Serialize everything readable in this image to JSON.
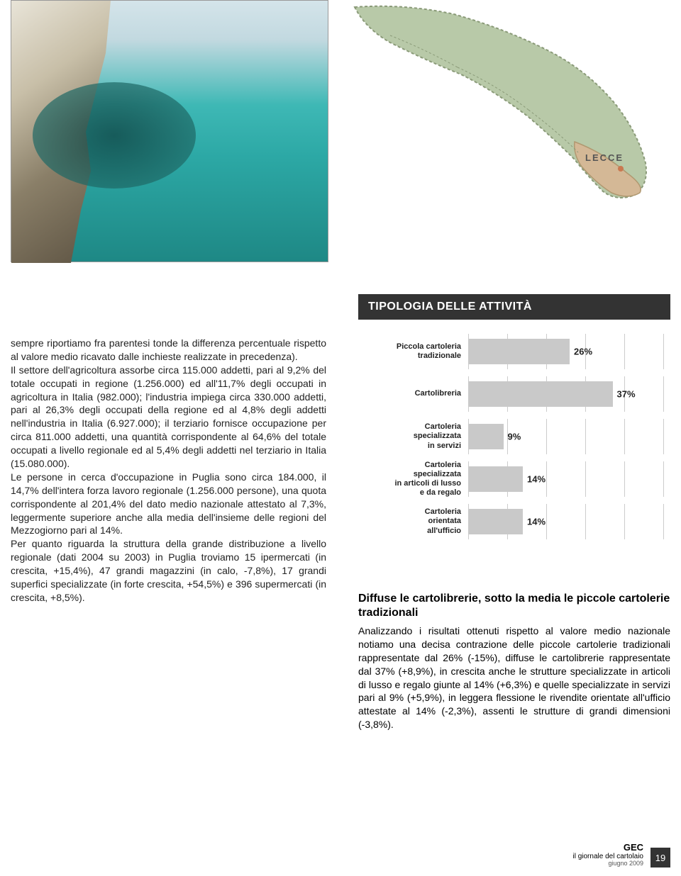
{
  "map": {
    "label": "LECCE"
  },
  "chart": {
    "title": "TIPOLOGIA DELLE ATTIVITÀ",
    "type": "bar-horizontal",
    "max_pct": 50,
    "gridlines": [
      0,
      10,
      20,
      30,
      40,
      50
    ],
    "grid_color": "#cccccc",
    "bar_color": "#c9c9c9",
    "label_fontsize": 11,
    "pct_fontsize": 13,
    "rows": [
      {
        "label": "Piccola cartoleria\ntradizionale",
        "value": 26,
        "pct": "26%"
      },
      {
        "label": "Cartolibreria",
        "value": 37,
        "pct": "37%"
      },
      {
        "label": "Cartoleria\nspecializzata\nin servizi",
        "value": 9,
        "pct": "9%"
      },
      {
        "label": "Cartoleria\nspecializzata\nin articoli di lusso\ne da regalo",
        "value": 14,
        "pct": "14%"
      },
      {
        "label": "Cartoleria\norientata\nall'ufficio",
        "value": 14,
        "pct": "14%"
      }
    ]
  },
  "body": {
    "p1": "sempre riportiamo fra parentesi tonde la differenza percentuale rispetto al valore medio ricavato dalle inchieste realizzate in precedenza).",
    "p2": "Il settore dell'agricoltura assorbe circa 115.000 addetti, pari al 9,2% del totale occupati in regione (1.256.000) ed all'11,7% degli occupati in agricoltura in Italia (982.000); l'industria impiega circa 330.000 addetti, pari al 26,3% degli occupati della regione ed al 4,8% degli addetti nell'industria in Italia (6.927.000); il terziario fornisce occupazione per circa 811.000 addetti, una quantità corrispondente al 64,6% del totale occupati a livello regionale ed al 5,4% degli addetti nel terziario in Italia (15.080.000).",
    "p3": "Le persone in cerca d'occupazione in Puglia sono circa 184.000, il 14,7% dell'intera forza lavoro regionale (1.256.000 persone), una quota corrispondente al 201,4% del dato medio nazionale attestato al 7,3%, leggermente superiore anche alla media dell'insieme delle regioni del Mezzogiorno pari al 14%.",
    "p4": "Per quanto riguarda la struttura della grande distribuzione a livello regionale (dati 2004 su 2003) in Puglia troviamo 15 ipermercati (in crescita, +15,4%), 47 grandi magazzini (in calo, -7,8%), 17 grandi superfici specializzate (in forte crescita, +54,5%) e 396 supermercati (in crescita, +8,5%)."
  },
  "right": {
    "heading": "Diffuse le cartolibrerie, sotto la media le piccole cartolerie tradizionali",
    "text": "Analizzando i risultati ottenuti rispetto al valore medio nazionale notiamo una decisa contrazione delle piccole cartolerie tradizionali rappresentate dal 26% (-15%), diffuse le cartolibrerie rappresentate dal 37% (+8,9%), in crescita anche le strutture specializzate in articoli di lusso e regalo giunte al 14% (+6,3%) e quelle specializzate in servizi pari al 9% (+5,9%), in leggera flessione le rivendite orientate all'ufficio attestate al 14% (-2,3%), assenti le strutture di grandi dimensioni (-3,8%)."
  },
  "footer": {
    "brand1": "GEC",
    "brand2": "il giornale del cartolaio",
    "date": "giugno 2009",
    "page": "19"
  }
}
